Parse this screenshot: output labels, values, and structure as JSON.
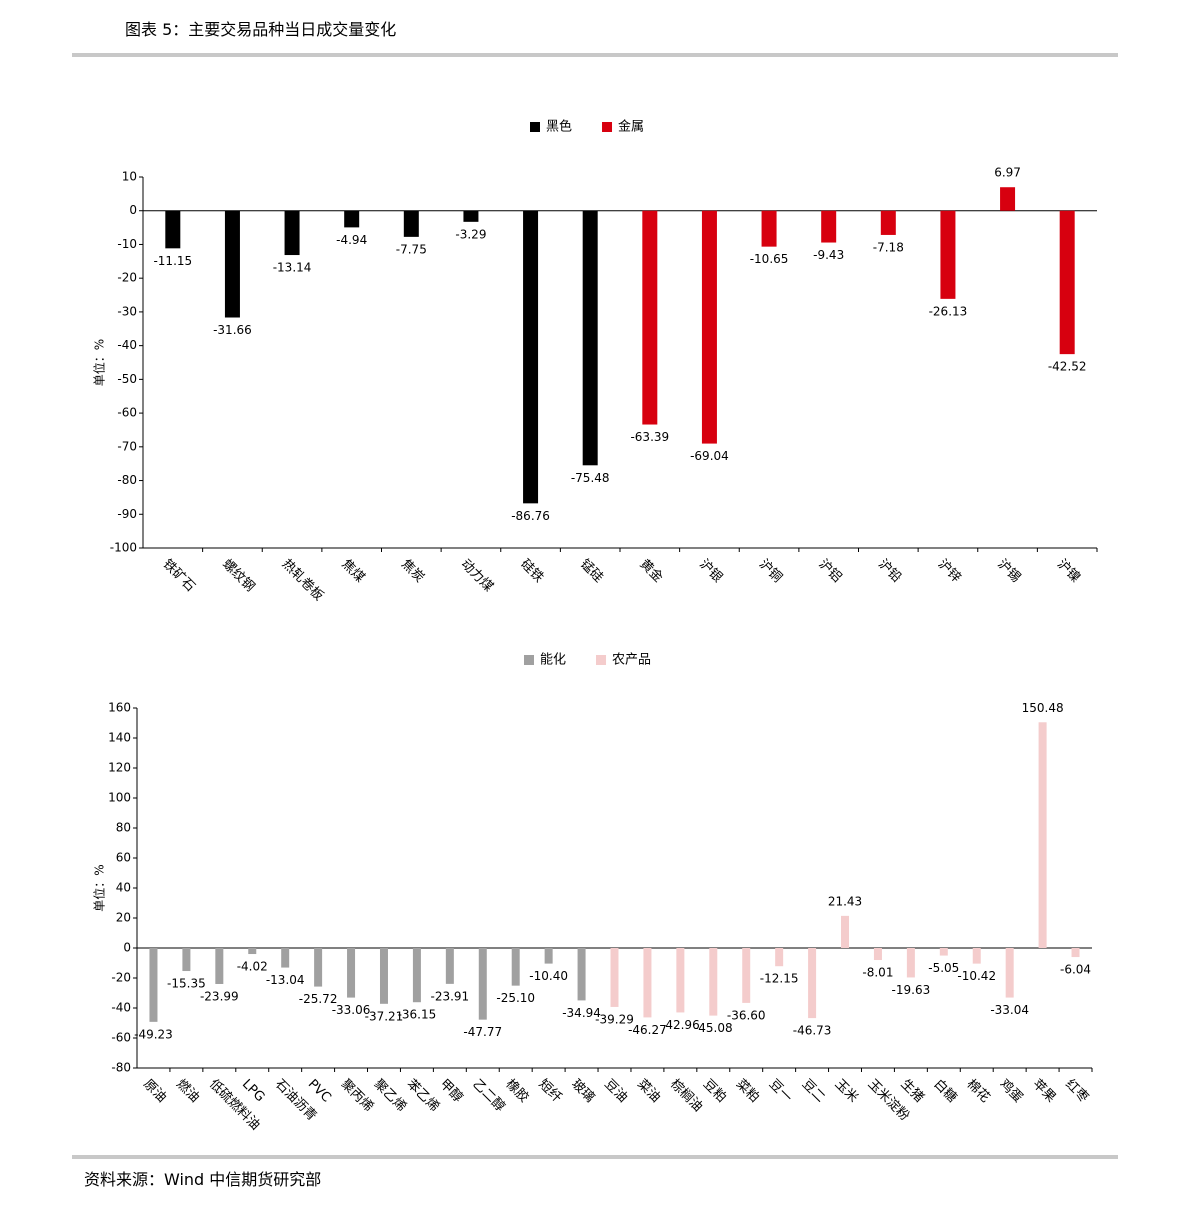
{
  "header": {
    "title": "图表 5：主要交易品种当日成交量变化"
  },
  "source": "资料来源：Wind 中信期货研究部",
  "chart_data": [
    {
      "type": "bar",
      "ylabel": "单位：%",
      "legend": "top",
      "ylim": [
        -100,
        10
      ],
      "yticks": [
        -100,
        -90,
        -80,
        -70,
        -60,
        -50,
        -40,
        -30,
        -20,
        -10,
        0,
        10
      ],
      "categories": [
        "铁矿石",
        "螺纹钢",
        "热轧卷板",
        "焦煤",
        "焦炭",
        "动力煤",
        "硅铁",
        "锰硅",
        "黄金",
        "沪银",
        "沪铜",
        "沪铝",
        "沪铅",
        "沪锌",
        "沪锡",
        "沪镍"
      ],
      "series": [
        {
          "name": "黑色",
          "color": "#000000",
          "values": [
            -11.15,
            -31.66,
            -13.14,
            -4.94,
            -7.75,
            -3.29,
            -86.76,
            -75.48,
            null,
            null,
            null,
            null,
            null,
            null,
            null,
            null
          ],
          "value_labels": [
            "-11.15",
            "-31.66",
            "-13.14",
            "-4.94",
            "-7.75",
            "-3.29",
            "-86.76",
            "-75.48",
            null,
            null,
            null,
            null,
            null,
            null,
            null,
            null
          ]
        },
        {
          "name": "金属",
          "color": "#d7000f",
          "values": [
            null,
            null,
            null,
            null,
            null,
            null,
            null,
            null,
            -63.39,
            -69.04,
            -10.65,
            -9.43,
            -7.18,
            -26.13,
            6.97,
            -42.52
          ],
          "value_labels": [
            null,
            null,
            null,
            null,
            null,
            null,
            null,
            null,
            "-63.39",
            "-69.04",
            "-10.65",
            "-9.43",
            "-7.18",
            "-26.13",
            "6.97",
            "-42.52"
          ]
        }
      ]
    },
    {
      "type": "bar",
      "ylabel": "单位：%",
      "legend": "top",
      "ylim": [
        -80,
        160
      ],
      "yticks": [
        -80,
        -60,
        -40,
        -20,
        0,
        20,
        40,
        60,
        80,
        100,
        120,
        140,
        160
      ],
      "categories": [
        "原油",
        "燃油",
        "低硫燃料油",
        "LPG",
        "石油沥青",
        "PVC",
        "聚丙烯",
        "聚乙烯",
        "苯乙烯",
        "甲醇",
        "乙二醇",
        "橡胶",
        "短纤",
        "玻璃",
        "豆油",
        "菜油",
        "棕榈油",
        "豆粕",
        "菜粕",
        "豆一",
        "豆二",
        "玉米",
        "玉米淀粉",
        "生猪",
        "白糖",
        "棉花",
        "鸡蛋",
        "苹果",
        "红枣"
      ],
      "series": [
        {
          "name": "能化",
          "color": "#a0a0a0",
          "values": [
            -49.23,
            -15.35,
            -23.99,
            -4.02,
            -13.04,
            -25.72,
            -33.06,
            -37.21,
            -36.15,
            -23.91,
            -47.77,
            -25.1,
            -10.4,
            -34.94,
            null,
            null,
            null,
            null,
            null,
            null,
            null,
            null,
            null,
            null,
            null,
            null,
            null,
            null,
            null
          ],
          "value_labels": [
            "-49.23",
            "-15.35",
            "-23.99",
            "-4.02",
            "-13.04",
            "-25.72",
            "-33.06",
            "-37.21",
            "-36.15",
            "-23.91",
            "-47.77",
            "-25.10",
            "-10.40",
            "-34.94",
            null,
            null,
            null,
            null,
            null,
            null,
            null,
            null,
            null,
            null,
            null,
            null,
            null,
            null,
            null
          ]
        },
        {
          "name": "农产品",
          "color": "#f4cccc",
          "values": [
            null,
            null,
            null,
            null,
            null,
            null,
            null,
            null,
            null,
            null,
            null,
            null,
            null,
            null,
            -39.29,
            -46.27,
            -42.96,
            -45.08,
            -36.6,
            -12.15,
            -46.73,
            21.43,
            -8.01,
            -19.63,
            -5.05,
            -10.42,
            -33.04,
            150.48,
            -6.04
          ],
          "value_labels": [
            null,
            null,
            null,
            null,
            null,
            null,
            null,
            null,
            null,
            null,
            null,
            null,
            null,
            null,
            "-39.29",
            "-46.27",
            "-42.96",
            "-45.08",
            "-36.60",
            "-12.15",
            "-46.73",
            "21.43",
            "-8.01",
            "-19.63",
            "-5.05",
            "-10.42",
            "-33.04",
            "150.48",
            "-6.04"
          ]
        }
      ]
    }
  ]
}
